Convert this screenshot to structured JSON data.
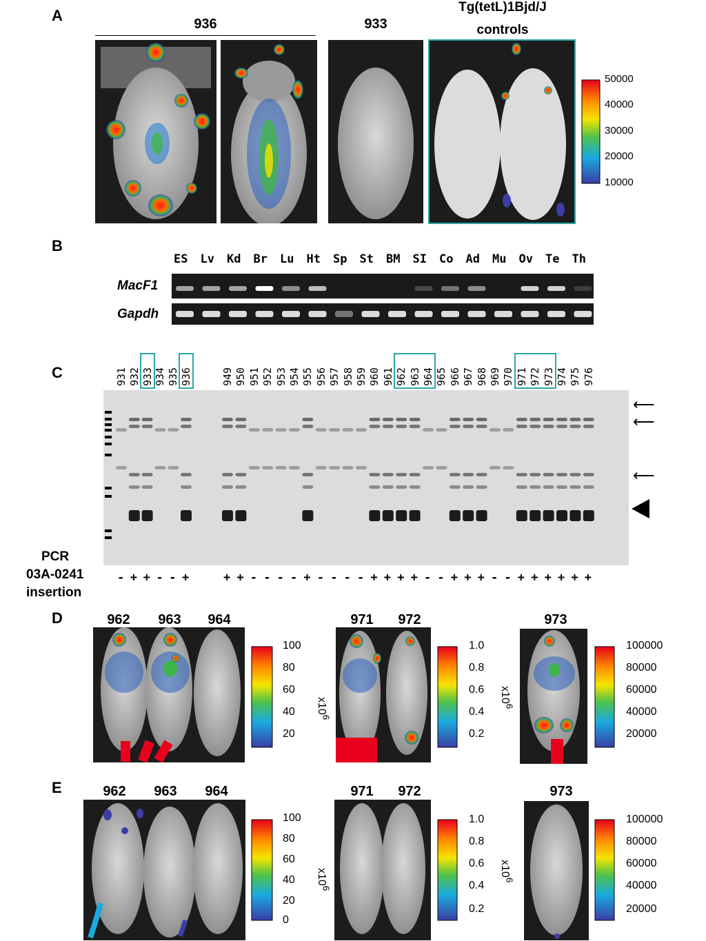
{
  "panels": {
    "A": {
      "label": "A",
      "group1": "936",
      "group2": "933",
      "group3_line1": "Tg(tetL)1Bjd/J",
      "group3_line2": "controls",
      "scale": [
        "50000",
        "40000",
        "30000",
        "20000",
        "10000"
      ]
    },
    "B": {
      "label": "B",
      "tissues": [
        "ES",
        "Lv",
        "Kd",
        "Br",
        "Lu",
        "Ht",
        "Sp",
        "St",
        "BM",
        "SI",
        "Co",
        "Ad",
        "Mu",
        "Ov",
        "Te",
        "Th"
      ],
      "row1": "MacF1",
      "row2": "Gapdh"
    },
    "C": {
      "label": "C",
      "lanes": [
        "931",
        "932",
        "933",
        "934",
        "935",
        "936",
        "949",
        "950",
        "951",
        "952",
        "953",
        "954",
        "955",
        "956",
        "957",
        "958",
        "959",
        "960",
        "961",
        "962",
        "963",
        "964",
        "965",
        "966",
        "967",
        "968",
        "969",
        "970",
        "971",
        "972",
        "973",
        "974",
        "975",
        "976"
      ],
      "pcr_title1": "PCR",
      "pcr_title2": "03A-0241",
      "pcr_title3": "insertion",
      "pcr": [
        "-",
        "+",
        "+",
        "-",
        "-",
        "+",
        "+",
        "+",
        "-",
        "-",
        "-",
        "-",
        "+",
        "-",
        "-",
        "-",
        "-",
        "+",
        "+",
        "+",
        "+",
        "-",
        "-",
        "+",
        "+",
        "+",
        "-",
        "-",
        "+",
        "+",
        "+",
        "+",
        "+",
        "+"
      ]
    },
    "D": {
      "label": "D",
      "g1": [
        "962",
        "963",
        "964"
      ],
      "g2": [
        "971",
        "972"
      ],
      "g3": [
        "973"
      ],
      "scale1": [
        "100",
        "80",
        "60",
        "40",
        "20"
      ],
      "scale2": [
        "1.0",
        "0.8",
        "0.6",
        "0.4",
        "0.2"
      ],
      "scale3": [
        "100000",
        "80000",
        "60000",
        "40000",
        "20000"
      ],
      "mult": "x10",
      "exp": "6"
    },
    "E": {
      "label": "E",
      "g1": [
        "962",
        "963",
        "964"
      ],
      "g2": [
        "971",
        "972"
      ],
      "g3": [
        "973"
      ],
      "scale1": [
        "100",
        "80",
        "60",
        "40",
        "20",
        "0"
      ],
      "scale2": [
        "1.0",
        "0.8",
        "0.6",
        "0.4",
        "0.2"
      ],
      "scale3": [
        "100000",
        "80000",
        "60000",
        "40000",
        "20000"
      ],
      "mult": "x10",
      "exp": "6"
    }
  },
  "colors": {
    "teal_box": "#2aa6a6",
    "colorbar": [
      "#e8001c",
      "#ff8a00",
      "#f5e400",
      "#4fc24a",
      "#1aa9e0",
      "#3a3ea6"
    ]
  }
}
